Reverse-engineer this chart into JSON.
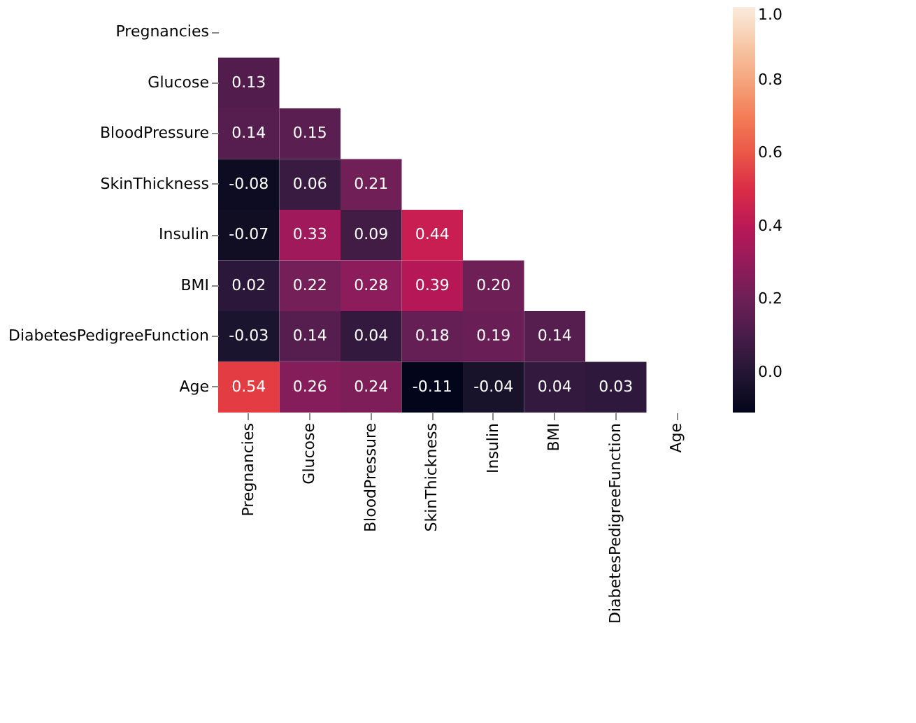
{
  "chart_data": {
    "type": "heatmap",
    "categories": [
      "Pregnancies",
      "Glucose",
      "BloodPressure",
      "SkinThickness",
      "Insulin",
      "BMI",
      "DiabetesPedigreeFunction",
      "Age"
    ],
    "y_categories": [
      "Pregnancies",
      "Glucose",
      "BloodPressure",
      "SkinThickness",
      "Insulin",
      "BMI",
      "DiabetesPedigreeFunction",
      "Age"
    ],
    "cells": [
      [
        null,
        null,
        null,
        null,
        null,
        null,
        null,
        null
      ],
      [
        0.13,
        null,
        null,
        null,
        null,
        null,
        null,
        null
      ],
      [
        0.14,
        0.15,
        null,
        null,
        null,
        null,
        null,
        null
      ],
      [
        -0.08,
        0.06,
        0.21,
        null,
        null,
        null,
        null,
        null
      ],
      [
        -0.07,
        0.33,
        0.09,
        0.44,
        null,
        null,
        null,
        null
      ],
      [
        0.02,
        0.22,
        0.28,
        0.39,
        0.2,
        null,
        null,
        null
      ],
      [
        -0.03,
        0.14,
        0.04,
        0.18,
        0.19,
        0.14,
        null,
        null
      ],
      [
        0.54,
        0.26,
        0.24,
        -0.11,
        -0.04,
        0.04,
        0.03,
        null
      ]
    ],
    "cell_labels": [
      [
        null,
        null,
        null,
        null,
        null,
        null,
        null,
        null
      ],
      [
        "0.13",
        null,
        null,
        null,
        null,
        null,
        null,
        null
      ],
      [
        "0.14",
        "0.15",
        null,
        null,
        null,
        null,
        null,
        null
      ],
      [
        "-0.08",
        "0.06",
        "0.21",
        null,
        null,
        null,
        null,
        null
      ],
      [
        "-0.07",
        "0.33",
        "0.09",
        "0.44",
        null,
        null,
        null,
        null
      ],
      [
        "0.02",
        "0.22",
        "0.28",
        "0.39",
        "0.20",
        null,
        null,
        null
      ],
      [
        "-0.03",
        "0.14",
        "0.04",
        "0.18",
        "0.19",
        "0.14",
        null,
        null
      ],
      [
        "0.54",
        "0.26",
        "0.24",
        "-0.11",
        "-0.04",
        "0.04",
        "0.03",
        null
      ]
    ],
    "clim": [
      -0.11,
      1.0
    ],
    "cticks": [
      {
        "value": 0.0,
        "label": "0.0"
      },
      {
        "value": 0.2,
        "label": "0.2"
      },
      {
        "value": 0.4,
        "label": "0.4"
      },
      {
        "value": 0.6,
        "label": "0.6"
      },
      {
        "value": 0.8,
        "label": "0.8"
      },
      {
        "value": 1.0,
        "label": "1.0"
      }
    ],
    "data_labels": true
  }
}
